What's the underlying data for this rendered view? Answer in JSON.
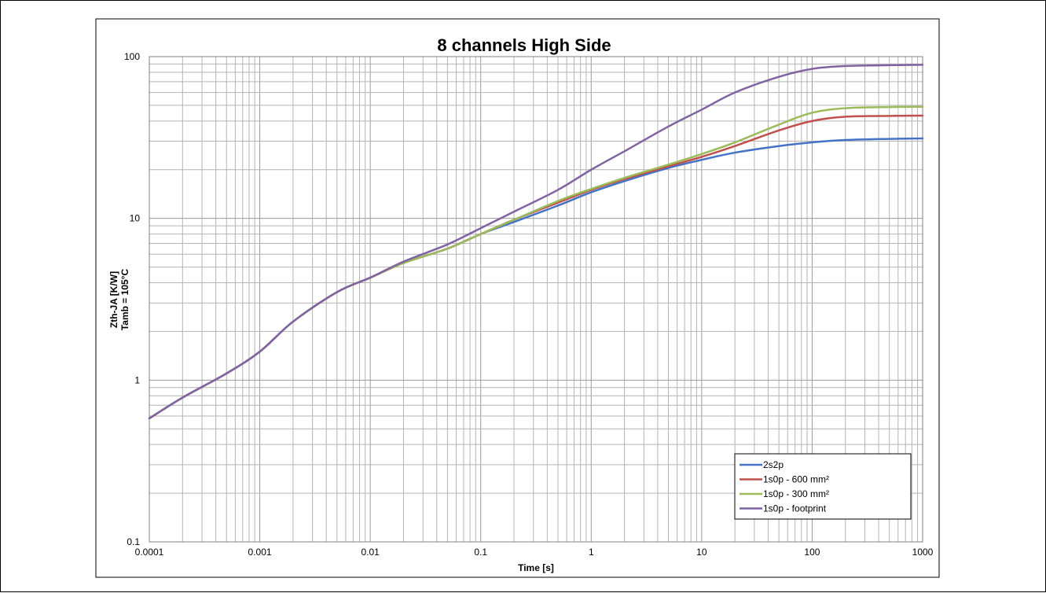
{
  "chart_data": {
    "type": "line",
    "title": "8 channels High Side",
    "xlabel": "Time [s]",
    "ylabel_lines": [
      "Zth-JA [K/W]",
      "Tamb = 105°C"
    ],
    "xscale": "log",
    "yscale": "log",
    "xlim": [
      0.0001,
      1000
    ],
    "ylim": [
      0.1,
      100
    ],
    "x_ticks": [
      {
        "value": 0.0001,
        "label": "0.0001"
      },
      {
        "value": 0.001,
        "label": "0.001"
      },
      {
        "value": 0.01,
        "label": "0.01"
      },
      {
        "value": 0.1,
        "label": "0.1"
      },
      {
        "value": 1,
        "label": "1"
      },
      {
        "value": 10,
        "label": "10"
      },
      {
        "value": 100,
        "label": "100"
      },
      {
        "value": 1000,
        "label": "1000"
      }
    ],
    "y_ticks": [
      {
        "value": 0.1,
        "label": "0.1"
      },
      {
        "value": 1,
        "label": "1"
      },
      {
        "value": 10,
        "label": "10"
      },
      {
        "value": 100,
        "label": "100"
      }
    ],
    "grid": true,
    "legend_position": "bottom-right",
    "x": [
      0.0001,
      0.0002,
      0.0005,
      0.001,
      0.002,
      0.005,
      0.01,
      0.02,
      0.05,
      0.1,
      0.2,
      0.5,
      1,
      2,
      5,
      10,
      20,
      50,
      100,
      200,
      500,
      1000
    ],
    "series": [
      {
        "name": "2s2p",
        "color": "#4472c4",
        "values": [
          0.58,
          0.78,
          1.1,
          1.5,
          2.3,
          3.5,
          4.3,
          5.3,
          6.5,
          8.0,
          9.5,
          12,
          14.5,
          17,
          20.5,
          23,
          25.5,
          28,
          29.5,
          30.5,
          31,
          31.2
        ]
      },
      {
        "name": "1s0p - 600 mm²",
        "color": "#c0504d",
        "values": [
          0.58,
          0.78,
          1.1,
          1.5,
          2.3,
          3.5,
          4.3,
          5.3,
          6.5,
          8.0,
          9.8,
          12.5,
          15,
          17.5,
          21,
          24,
          28,
          35,
          40,
          42.5,
          43,
          43.2
        ]
      },
      {
        "name": "1s0p - 300 mm²",
        "color": "#9bbb59",
        "values": [
          0.58,
          0.78,
          1.1,
          1.5,
          2.3,
          3.5,
          4.3,
          5.3,
          6.5,
          8.0,
          9.8,
          12.8,
          15.2,
          17.8,
          21.5,
          25,
          29.5,
          38,
          45,
          48,
          48.8,
          49
        ]
      },
      {
        "name": "1s0p - footprint",
        "color": "#8064a2",
        "values": [
          0.58,
          0.78,
          1.1,
          1.5,
          2.3,
          3.5,
          4.3,
          5.4,
          6.9,
          8.7,
          11,
          15,
          20,
          26,
          37,
          47,
          60,
          75,
          84,
          87.5,
          88.5,
          89
        ]
      }
    ]
  }
}
